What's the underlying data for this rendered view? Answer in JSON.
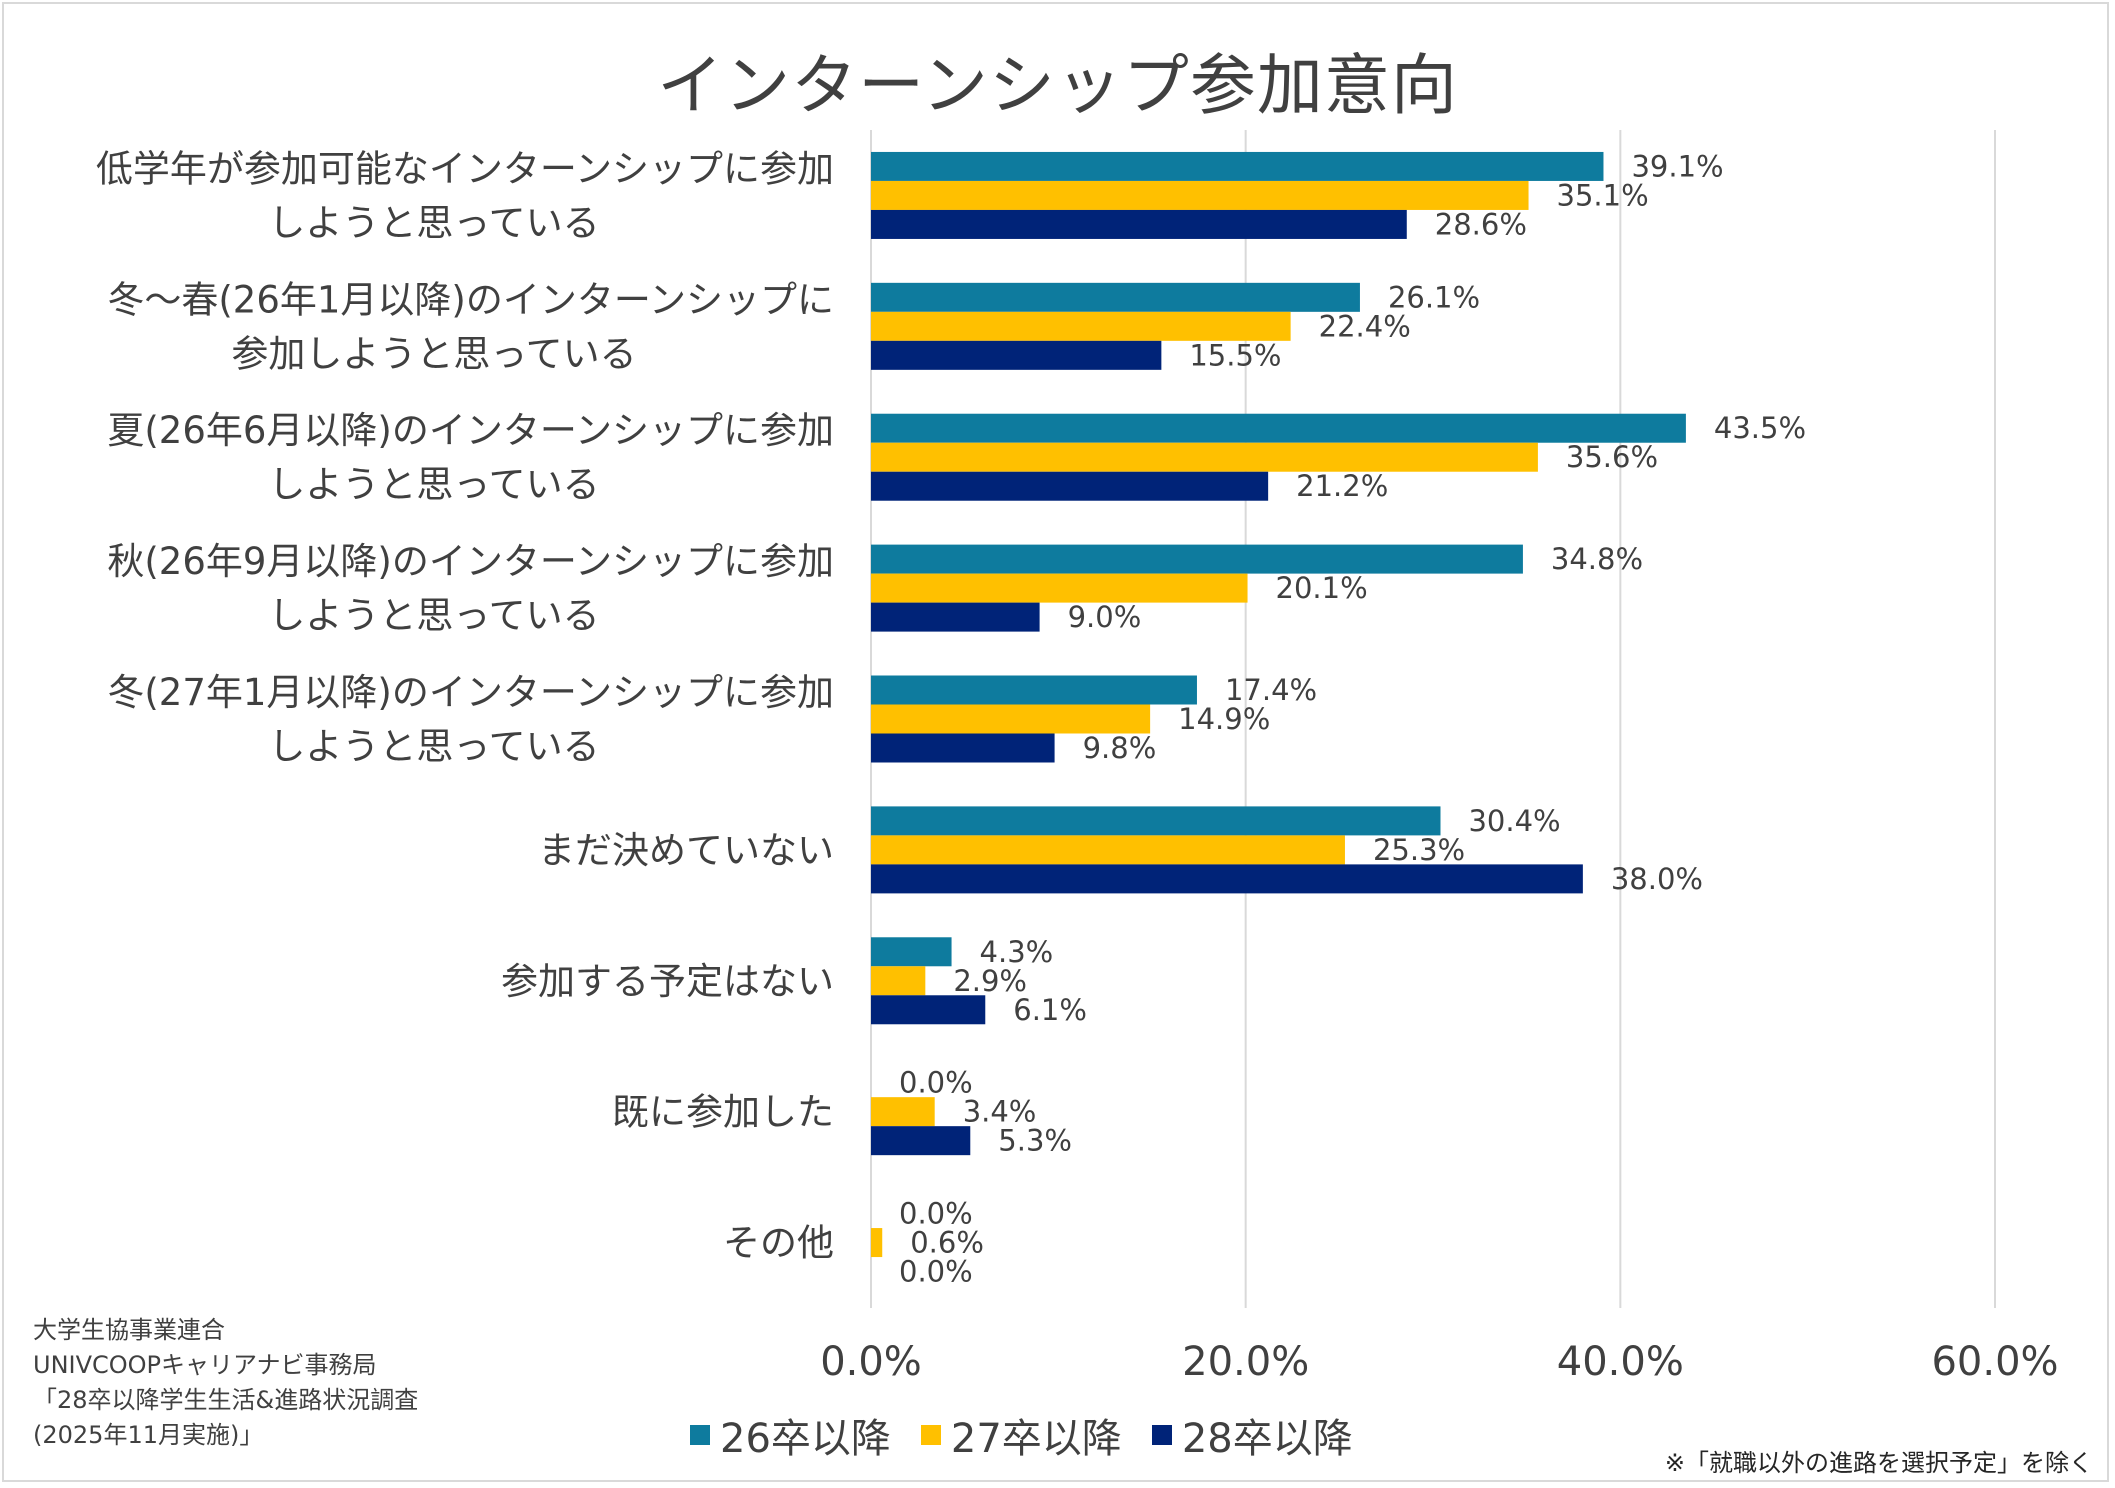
{
  "chart_data": {
    "type": "bar",
    "orientation": "horizontal",
    "title": "インターンシップ参加意向",
    "categories": [
      [
        "低学年が参加可能なインターンシップに参加",
        "しようと思っている"
      ],
      [
        "冬～春(26年1月以降)のインターンシップに",
        "参加しようと思っている"
      ],
      [
        "夏(26年6月以降)のインターンシップに参加",
        "しようと思っている"
      ],
      [
        "秋(26年9月以降)のインターンシップに参加",
        "しようと思っている"
      ],
      [
        "冬(27年1月以降)のインターンシップに参加",
        "しようと思っている"
      ],
      [
        "まだ決めていない"
      ],
      [
        "参加する予定はない"
      ],
      [
        "既に参加した"
      ],
      [
        "その他"
      ]
    ],
    "series": [
      {
        "name": "26卒以降",
        "color": "#0e7b9e",
        "values": [
          39.1,
          26.1,
          43.5,
          34.8,
          17.4,
          30.4,
          4.3,
          0.0,
          0.0
        ]
      },
      {
        "name": "27卒以降",
        "color": "#ffc000",
        "values": [
          35.1,
          22.4,
          35.6,
          20.1,
          14.9,
          25.3,
          2.9,
          3.4,
          0.6
        ]
      },
      {
        "name": "28卒以降",
        "color": "#002378",
        "values": [
          28.6,
          15.5,
          21.2,
          9.0,
          9.8,
          38.0,
          6.1,
          5.3,
          0.0
        ]
      }
    ],
    "xlim": [
      0,
      60
    ],
    "xticks": [
      "0.0%",
      "20.0%",
      "40.0%",
      "60.0%"
    ],
    "xtick_values": [
      0,
      20,
      40,
      60
    ],
    "value_suffix": "%",
    "grid": "vertical",
    "legend_position": "bottom"
  },
  "source": {
    "lines": [
      "大学生協事業連合",
      "UNIVCOOPキャリアナビ事務局",
      "「28卒以降学生生活&進路状況調査",
      "(2025年11月実施)」"
    ]
  },
  "note": "※「就職以外の進路を選択予定」を除く"
}
